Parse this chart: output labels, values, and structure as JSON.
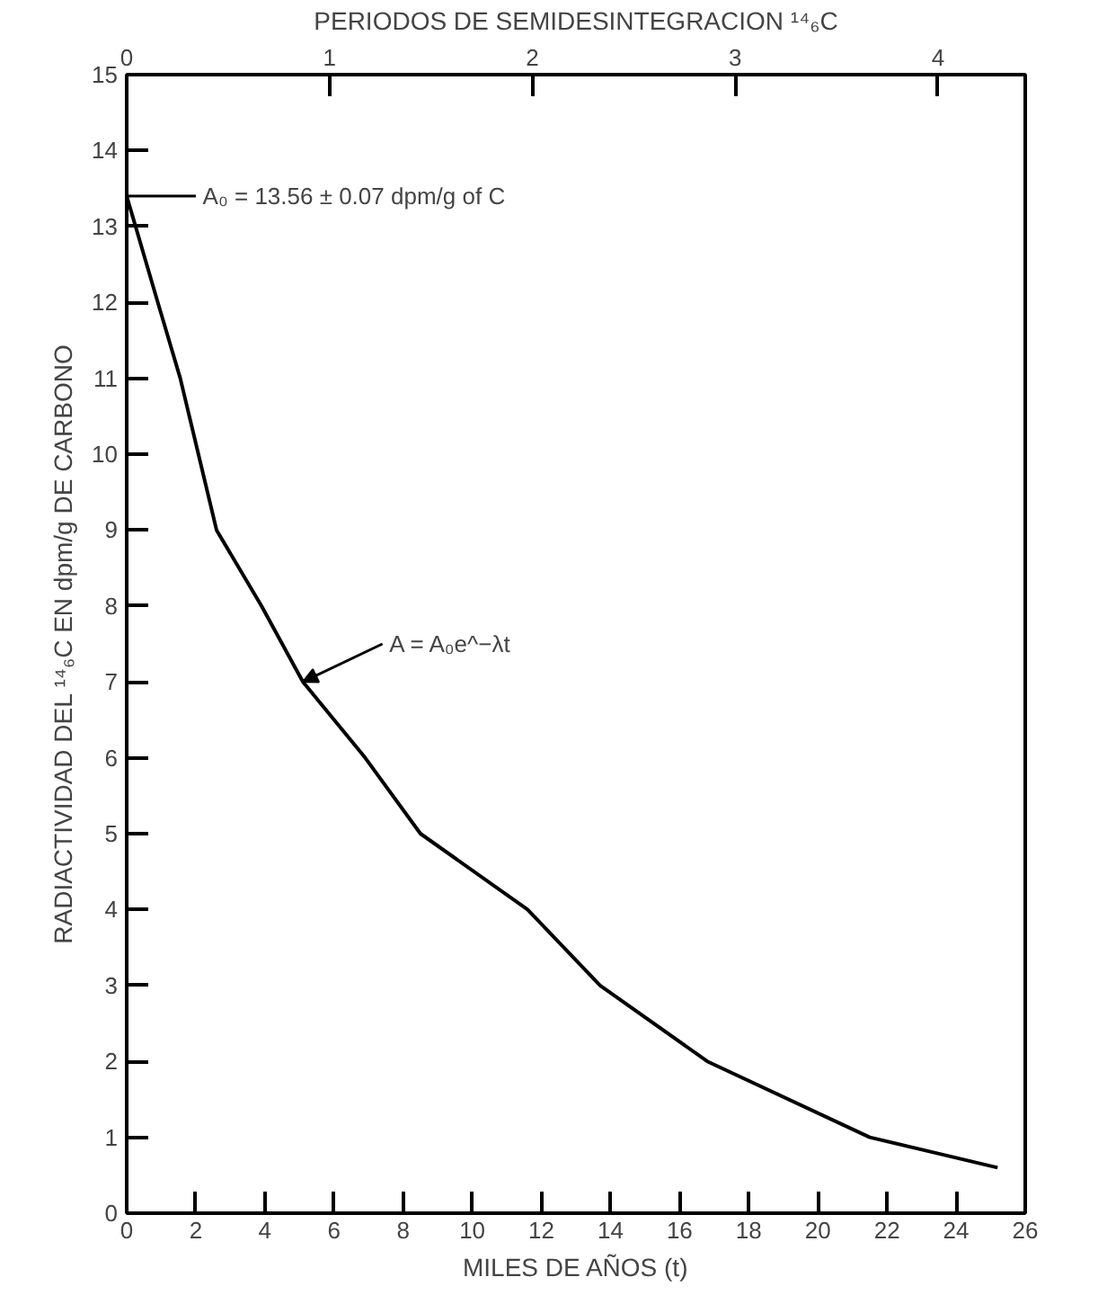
{
  "chart_data": {
    "type": "line",
    "xlabel": "MILES DE AÑOS (t)",
    "ylabel": "RADIACTIVIDAD DEL ¹⁴₆C EN dpm/g DE CARBONO",
    "x2label": "PERIODOS DE SEMIDESINTEGRACION ¹⁴₆C",
    "series": [
      {
        "color": "#000000",
        "x": [
          0,
          0.9,
          1.55,
          2.6,
          3.9,
          5.1,
          6.9,
          8.5,
          11.6,
          13.7,
          16.8,
          21.5,
          25.2
        ],
        "values": [
          13.4,
          12,
          11,
          9,
          8,
          7,
          6,
          5,
          4,
          3,
          2,
          1,
          0.6
        ]
      }
    ],
    "xlim": [
      0,
      26
    ],
    "xticks": [
      0,
      2,
      4,
      6,
      8,
      10,
      12,
      14,
      16,
      18,
      20,
      22,
      24,
      26
    ],
    "ylim": [
      0,
      15
    ],
    "yticks": [
      0,
      1,
      2,
      3,
      4,
      5,
      6,
      7,
      8,
      9,
      10,
      11,
      12,
      13,
      14,
      15
    ],
    "x2lim": [
      0,
      4.43
    ],
    "x2ticks": [
      0,
      1,
      2,
      3,
      4
    ],
    "annotations": [
      "A₀ = 13.56 ± 0.07 dpm/g of C",
      {
        "text": "A = A₀e^−λt",
        "x": 5.1,
        "y": 7
      }
    ],
    "grid": false,
    "marker": "none",
    "line_style": "solid"
  }
}
